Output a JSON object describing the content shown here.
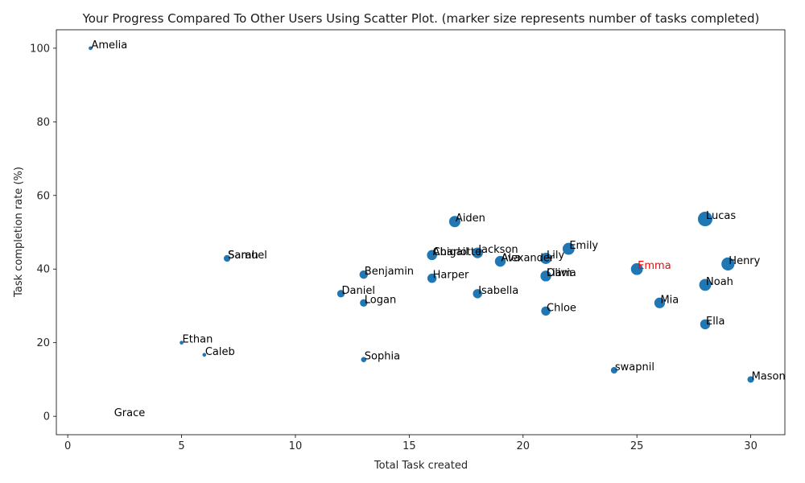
{
  "chart_data": {
    "type": "scatter",
    "title": "Your Progress Compared To Other Users Using Scatter Plot. (marker size represents number of tasks completed)",
    "xlabel": "Total Task created",
    "ylabel": "Task completion rate (%)",
    "xlim": [
      -0.5,
      31.5
    ],
    "ylim": [
      -5,
      105
    ],
    "xticks": [
      0,
      5,
      10,
      15,
      20,
      25,
      30
    ],
    "yticks": [
      0,
      20,
      40,
      60,
      80,
      100
    ],
    "grid": false,
    "marker_color": "#1f77b4",
    "highlight_color": "#ff0000",
    "points": [
      {
        "label": "Amelia",
        "x": 1,
        "y": 100,
        "completed": 1
      },
      {
        "label": "Lucas",
        "x": 28,
        "y": 53.6,
        "completed": 15
      },
      {
        "label": "Aiden",
        "x": 17,
        "y": 52.9,
        "completed": 9
      },
      {
        "label": "Emily",
        "x": 22,
        "y": 45.5,
        "completed": 10
      },
      {
        "label": "Jackson",
        "x": 18,
        "y": 44.4,
        "completed": 8
      },
      {
        "label": "Charlotte",
        "x": 16,
        "y": 43.8,
        "completed": 7
      },
      {
        "label": "Abigail",
        "x": 16,
        "y": 43.8,
        "completed": 7
      },
      {
        "label": "Lily",
        "x": 21,
        "y": 42.9,
        "completed": 9
      },
      {
        "label": "Sarah",
        "x": 7,
        "y": 42.9,
        "completed": 3
      },
      {
        "label": "Samuel",
        "x": 7,
        "y": 42.9,
        "completed": 3
      },
      {
        "label": "Alexander",
        "x": 19,
        "y": 42.1,
        "completed": 8
      },
      {
        "label": "Ava",
        "x": 19,
        "y": 42.1,
        "completed": 8
      },
      {
        "label": "Henry",
        "x": 29,
        "y": 41.4,
        "completed": 12
      },
      {
        "label": "Emma",
        "x": 25,
        "y": 40,
        "completed": 10,
        "highlight": true
      },
      {
        "label": "Benjamin",
        "x": 13,
        "y": 38.5,
        "completed": 5
      },
      {
        "label": "Olivia",
        "x": 21,
        "y": 38.1,
        "completed": 8
      },
      {
        "label": "Liam",
        "x": 21,
        "y": 38.1,
        "completed": 8
      },
      {
        "label": "Harper",
        "x": 16,
        "y": 37.5,
        "completed": 6
      },
      {
        "label": "Noah",
        "x": 28,
        "y": 35.7,
        "completed": 10
      },
      {
        "label": "Daniel",
        "x": 12,
        "y": 33.3,
        "completed": 4
      },
      {
        "label": "Isabella",
        "x": 18,
        "y": 33.3,
        "completed": 6
      },
      {
        "label": "Logan",
        "x": 13,
        "y": 30.8,
        "completed": 4
      },
      {
        "label": "Mia",
        "x": 26,
        "y": 30.8,
        "completed": 8
      },
      {
        "label": "Chloe",
        "x": 21,
        "y": 28.6,
        "completed": 6
      },
      {
        "label": "Ella",
        "x": 28,
        "y": 25,
        "completed": 7
      },
      {
        "label": "Ethan",
        "x": 5,
        "y": 20,
        "completed": 1
      },
      {
        "label": "Caleb",
        "x": 6,
        "y": 16.7,
        "completed": 1
      },
      {
        "label": "Sophia",
        "x": 13,
        "y": 15.4,
        "completed": 2
      },
      {
        "label": "swapnil",
        "x": 24,
        "y": 12.5,
        "completed": 3
      },
      {
        "label": "Mason",
        "x": 30,
        "y": 10,
        "completed": 3
      },
      {
        "label": "Grace",
        "x": 2,
        "y": 0,
        "completed": 0
      }
    ]
  }
}
